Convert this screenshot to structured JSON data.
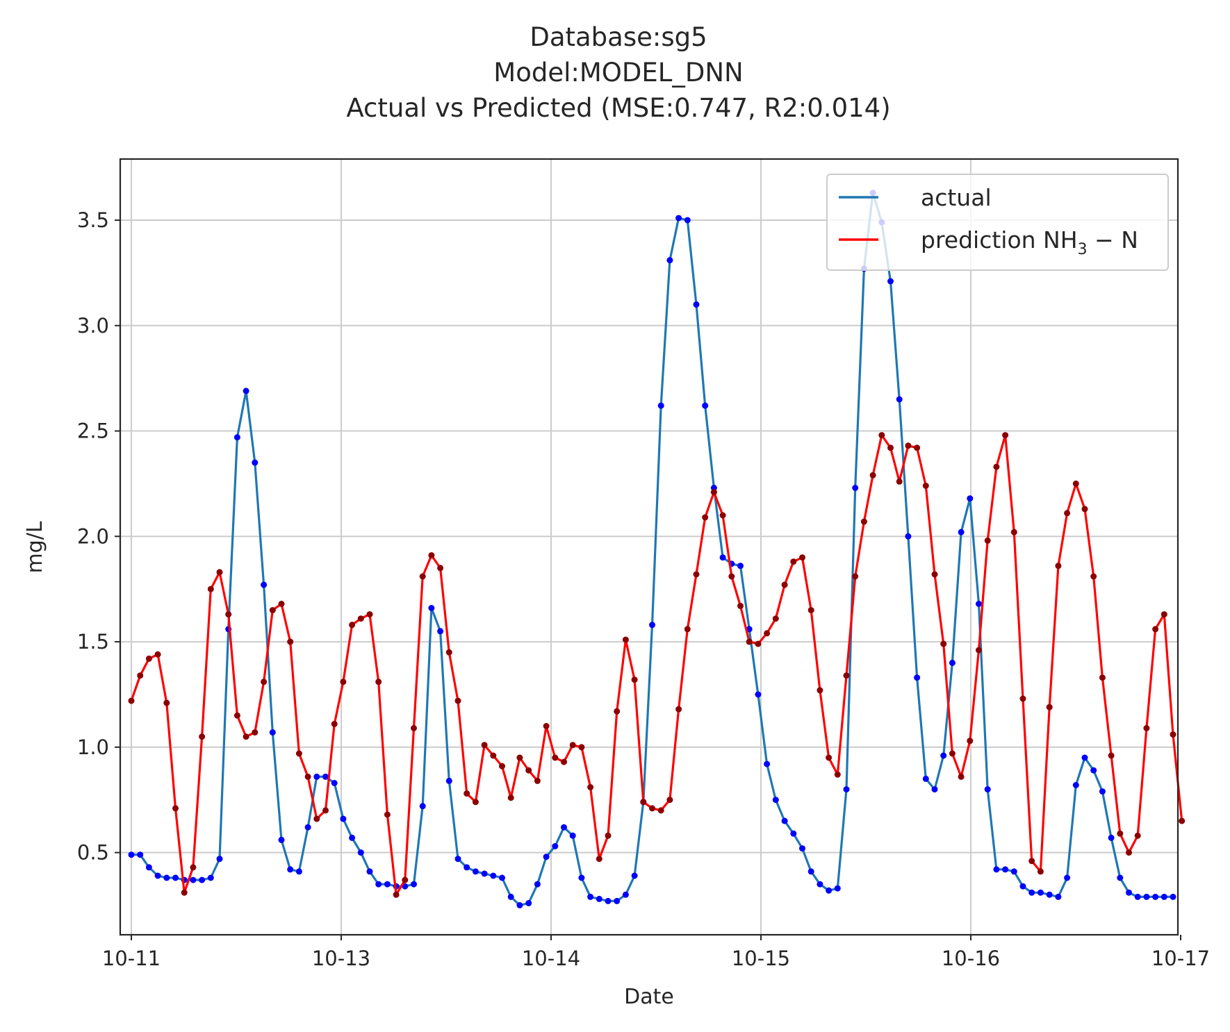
{
  "chart_data": {
    "type": "line",
    "title_lines": [
      "Database:sg5",
      "Model:MODEL_DNN",
      "Actual vs Predicted (MSE:0.747, R2:0.014)"
    ],
    "xlabel": "Date",
    "ylabel": "mg/L",
    "xtick_labels": [
      "10-11",
      "10-13",
      "10-14",
      "10-15",
      "10-16",
      "10-17"
    ],
    "ytick_labels": [
      "0.5",
      "1.0",
      "1.5",
      "2.0",
      "2.5",
      "3.0",
      "3.5"
    ],
    "yticks": [
      0.5,
      1.0,
      1.5,
      2.0,
      2.5,
      3.0,
      3.5
    ],
    "ylim": [
      0.11,
      3.79
    ],
    "grid": true,
    "legend_position": "top-right",
    "legend": {
      "actual_label": "actual",
      "prediction_label_main": "prediction NH",
      "prediction_label_sub": "3",
      "prediction_label_tail": " − N"
    },
    "series": [
      {
        "name": "actual",
        "color": "#1f77b4",
        "marker_color": "#0000ff",
        "values": [
          0.49,
          0.49,
          0.43,
          0.39,
          0.38,
          0.38,
          0.37,
          0.37,
          0.37,
          0.38,
          0.47,
          1.56,
          2.47,
          2.69,
          2.35,
          1.77,
          1.07,
          0.56,
          0.42,
          0.41,
          0.62,
          0.86,
          0.86,
          0.83,
          0.66,
          0.57,
          0.5,
          0.41,
          0.35,
          0.35,
          0.34,
          0.34,
          0.35,
          0.72,
          1.66,
          1.55,
          0.84,
          0.47,
          0.43,
          0.41,
          0.4,
          0.39,
          0.38,
          0.29,
          0.25,
          0.26,
          0.35,
          0.48,
          0.53,
          0.62,
          0.58,
          0.38,
          0.29,
          0.28,
          0.27,
          0.27,
          0.3,
          0.39,
          0.74,
          1.58,
          2.62,
          3.31,
          3.51,
          3.5,
          3.1,
          2.62,
          2.23,
          1.9,
          1.87,
          1.86,
          1.56,
          1.25,
          0.92,
          0.75,
          0.65,
          0.59,
          0.52,
          0.41,
          0.35,
          0.32,
          0.33,
          0.8,
          2.23,
          3.27,
          3.63,
          3.49,
          3.21,
          2.65,
          2.0,
          1.33,
          0.85,
          0.8,
          0.96,
          1.4,
          2.02,
          2.18,
          1.68,
          0.8,
          0.42,
          0.42,
          0.41,
          0.34,
          0.31,
          0.31,
          0.3,
          0.29,
          0.38,
          0.82,
          0.95,
          0.89,
          0.79,
          0.57,
          0.38,
          0.31,
          0.29,
          0.29,
          0.29,
          0.29,
          0.29
        ]
      },
      {
        "name": "prediction NH3 − N",
        "color": "#ff0000",
        "marker_color": "#8b0000",
        "values": [
          1.22,
          1.34,
          1.42,
          1.44,
          1.21,
          0.71,
          0.31,
          0.43,
          1.05,
          1.75,
          1.83,
          1.63,
          1.15,
          1.05,
          1.07,
          1.31,
          1.65,
          1.68,
          1.5,
          0.97,
          0.86,
          0.66,
          0.7,
          1.11,
          1.31,
          1.58,
          1.61,
          1.63,
          1.31,
          0.68,
          0.3,
          0.37,
          1.09,
          1.81,
          1.91,
          1.85,
          1.45,
          1.22,
          0.78,
          0.74,
          1.01,
          0.96,
          0.91,
          0.76,
          0.95,
          0.89,
          0.84,
          1.1,
          0.95,
          0.93,
          1.01,
          1.0,
          0.81,
          0.47,
          0.58,
          1.17,
          1.51,
          1.32,
          0.74,
          0.71,
          0.7,
          0.75,
          1.18,
          1.56,
          1.82,
          2.09,
          2.21,
          2.1,
          1.81,
          1.67,
          1.5,
          1.49,
          1.54,
          1.61,
          1.77,
          1.88,
          1.9,
          1.65,
          1.27,
          0.95,
          0.87,
          1.34,
          1.81,
          2.07,
          2.29,
          2.48,
          2.42,
          2.26,
          2.43,
          2.42,
          2.24,
          1.82,
          1.49,
          0.97,
          0.86,
          1.03,
          1.46,
          1.98,
          2.33,
          2.48,
          2.02,
          1.23,
          0.46,
          0.41,
          1.19,
          1.86,
          2.11,
          2.25,
          2.13,
          1.81,
          1.33,
          0.96,
          0.59,
          0.5,
          0.58,
          1.09,
          1.56,
          1.63,
          1.06,
          0.65
        ]
      }
    ]
  }
}
